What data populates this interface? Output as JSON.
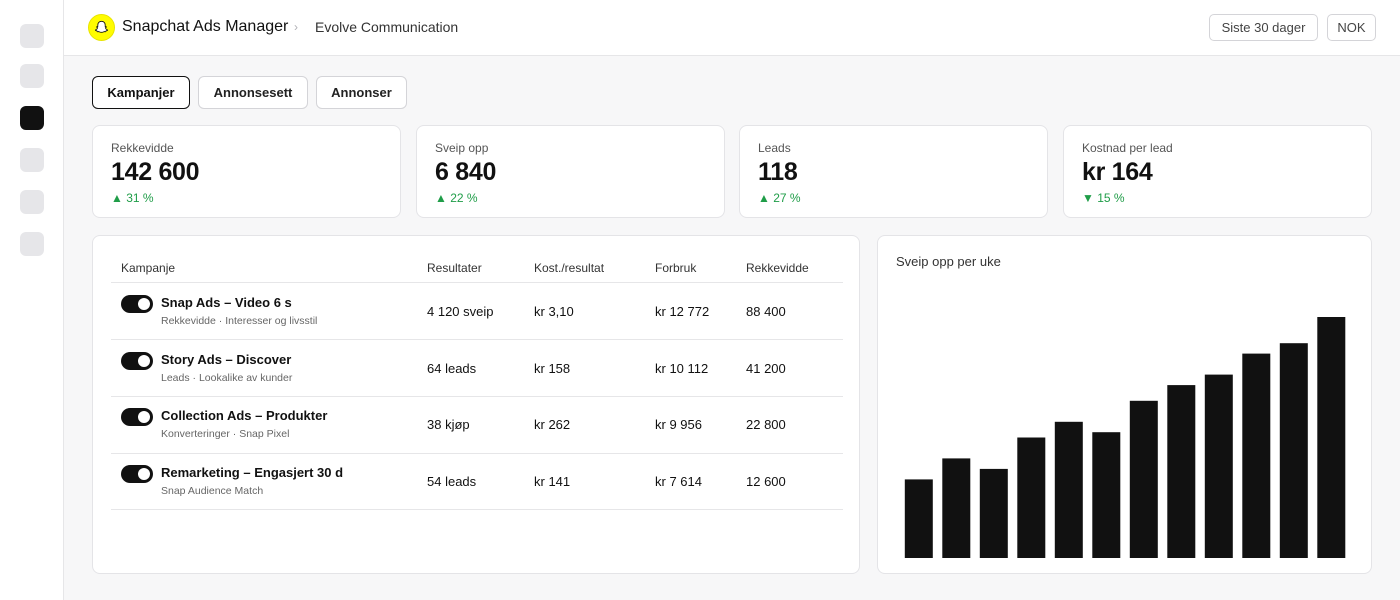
{
  "header": {
    "app_title": "Snapchat Ads Manager",
    "breadcrumb_separator": "›",
    "account_name": "Evolve Communication",
    "date_range": "Siste 30 dager",
    "currency": "NOK",
    "brand_color": "#FFFC00"
  },
  "rail": {
    "active_index": 2
  },
  "tabs": [
    {
      "label": "Kampanjer",
      "active": true
    },
    {
      "label": "Annonsesett",
      "active": false
    },
    {
      "label": "Annonser",
      "active": false
    }
  ],
  "kpis": [
    {
      "label": "Rekkevidde",
      "value": "142 600",
      "delta": "▲ 31 %",
      "trend": "up"
    },
    {
      "label": "Sveip opp",
      "value": "6 840",
      "delta": "▲ 22 %",
      "trend": "up"
    },
    {
      "label": "Leads",
      "value": "118",
      "delta": "▲ 27 %",
      "trend": "up"
    },
    {
      "label": "Kostnad per lead",
      "value": "kr 164",
      "delta": "▼ 15 %",
      "trend": "down"
    }
  ],
  "table": {
    "columns": [
      "Kampanje",
      "Resultater",
      "Kost./resultat",
      "Forbruk",
      "Rekkevidde"
    ],
    "rows": [
      {
        "name": "Snap Ads – Video 6 s",
        "sub": "Rekkevidde · Interesser og livsstil",
        "results": "4 120 sveip",
        "cost_per_result": "kr 3,10",
        "spend": "kr 12 772",
        "reach": "88 400",
        "enabled": true
      },
      {
        "name": "Story Ads – Discover",
        "sub": "Leads · Lookalike av kunder",
        "results": "64 leads",
        "cost_per_result": "kr 158",
        "spend": "kr 10 112",
        "reach": "41 200",
        "enabled": true
      },
      {
        "name": "Collection Ads – Produkter",
        "sub": "Konverteringer · Snap Pixel",
        "results": "38 kjøp",
        "cost_per_result": "kr 262",
        "spend": "kr 9 956",
        "reach": "22 800",
        "enabled": true
      },
      {
        "name": "Remarketing – Engasjert 30 d",
        "sub": "Snap Audience Match",
        "results": "54 leads",
        "cost_per_result": "kr 141",
        "spend": "kr 7 614",
        "reach": "12 600",
        "enabled": true
      }
    ]
  },
  "chart_data": {
    "type": "bar",
    "title": "Sveip opp per uke",
    "values": [
      30,
      38,
      34,
      46,
      52,
      48,
      60,
      66,
      70,
      78,
      82,
      92
    ],
    "ylim": [
      0,
      100
    ],
    "color": "#111111",
    "grid": false
  },
  "colors": {
    "positive": "#1F9D48",
    "ink": "#111111"
  }
}
